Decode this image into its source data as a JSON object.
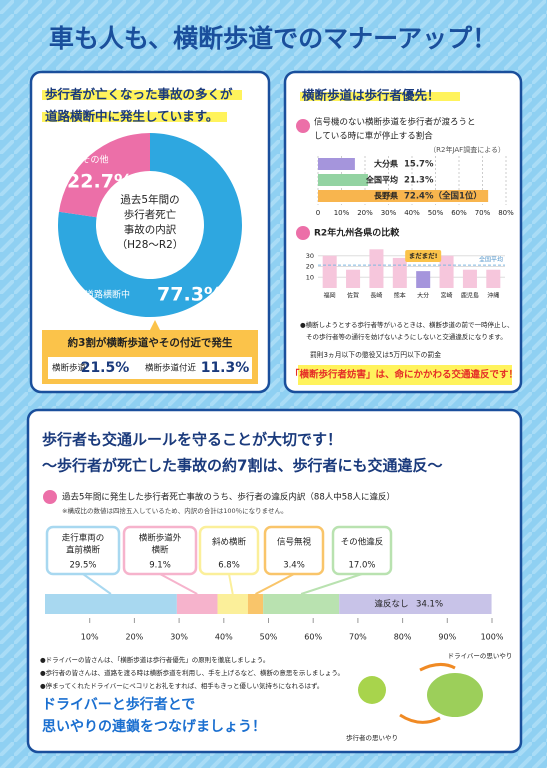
{
  "title": "車も人も、横断歩道でのマナーアップ！",
  "panel1": {
    "heading": [
      "歩行者が亡くなった事故の多くが",
      "道路横断中に発生しています。"
    ],
    "callout": "約3割が横断歩道やその付近で発生",
    "sub": [
      {
        "label": "横断歩道",
        "value": "21.5%"
      },
      {
        "label": "横断歩道付近",
        "value": "11.3%"
      }
    ]
  },
  "panel2": {
    "heading": "横断歩道は歩行者優先！",
    "question": [
      "信号機のない横断歩道を歩行者が渡ろうと",
      "している時に車が停止する割合"
    ],
    "source": "（R2年JAF調査による）",
    "notes": [
      "●横断しようとする歩行者等がいるときは、横断歩道の前で一時停止し、",
      "その歩行者等の通行を妨げないようにしないと交通違反になります。"
    ],
    "penalty": "罰則3ヵ月以下の懲役又は5万円以下の罰金",
    "warning": "「横断歩行者妨害」は、命にかかわる交通違反です！"
  },
  "panel3": {
    "heading": [
      "歩行者も交通ルールを守ることが大切です！",
      "〜歩行者が死亡した事故の約7割は、歩行者にも交通違反〜"
    ],
    "subtitle": "過去5年間に発生した歩行者死亡事故のうち、歩行者の違反内訳（88人中58人に違反）",
    "note": "※構成比の数値は四捨五入しているため、内訳の合計は100％になりません。",
    "bullets": [
      "●ドライバーの皆さんは、「横断歩道は歩行者優先」の原則を徹底しましょう。",
      "●歩行者の皆さんは、道路を渡る時は横断歩道を利用し、手を上げるなど、横断の意思を示しましょう。",
      "●停まってくれたドライバーにペコリとお礼をすれば、相手もきっと優しい気持ちになれるはず。"
    ],
    "slogan": [
      "ドライバーと歩行者とで",
      "思いやりの連鎖をつなげましょう！"
    ],
    "illustration": [
      "ドライバーの思いやり",
      "歩行者の思いやり"
    ]
  },
  "chart_data": [
    {
      "type": "pie",
      "center_label": [
        "過去5年間の",
        "歩行者死亡",
        "事故の内訳",
        "（H28〜R2）"
      ],
      "categories": [
        "道路横断中",
        "その他"
      ],
      "values": [
        77.3,
        22.7
      ],
      "value_labels": [
        "77.3%",
        "22.7%"
      ],
      "colors": [
        "#2ea7e0",
        "#ec6fa8"
      ]
    },
    {
      "type": "hbar",
      "categories": [
        "大分県",
        "全国平均",
        "長野県"
      ],
      "values": [
        15.7,
        21.3,
        72.4
      ],
      "value_labels": [
        "15.7%",
        "21.3%",
        "72.4%（全国1位）"
      ],
      "colors": [
        "#a595dc",
        "#93d3a2",
        "#f8b54e"
      ],
      "xlim": [
        0,
        80
      ],
      "xticks": [
        0,
        {
          "value": 10,
          "label": "10%"
        },
        {
          "value": 20,
          "label": "20%"
        },
        {
          "value": 30,
          "label": "30%"
        },
        {
          "value": 40,
          "label": "40%"
        },
        {
          "value": 50,
          "label": "50%"
        },
        {
          "value": 60,
          "label": "60%"
        },
        {
          "value": 70,
          "label": "70%"
        },
        {
          "value": 80,
          "label": "80%"
        }
      ],
      "grid": true
    },
    {
      "type": "bar",
      "title": "R2年九州各県の比較",
      "categories": [
        "福岡",
        "佐賀",
        "長崎",
        "熊本",
        "大分",
        "宮崎",
        "鹿児島",
        "沖縄"
      ],
      "values": [
        30,
        17,
        36,
        28,
        15.7,
        30,
        17,
        17
      ],
      "colors": [
        "#f6c6dc",
        "#f6c6dc",
        "#f6c6dc",
        "#f6c6dc",
        "#a595dc",
        "#f6c6dc",
        "#f6c6dc",
        "#f6c6dc"
      ],
      "ylim": [
        0,
        40
      ],
      "yticks": [
        10,
        20,
        30
      ],
      "grid": true,
      "annotation": "まだまだ!",
      "reference": {
        "value": 21.3,
        "label": "全国平均"
      }
    },
    {
      "type": "stacked",
      "categories": [
        [
          "走行車両の",
          "直前横断"
        ],
        [
          "横断歩道外",
          "横断"
        ],
        [
          "斜め横断"
        ],
        [
          "信号無視"
        ],
        [
          "その他違反"
        ],
        [
          "違反なし"
        ]
      ],
      "values": [
        29.5,
        9.1,
        6.8,
        3.4,
        17.0,
        34.1
      ],
      "value_labels": [
        "29.5%",
        "9.1%",
        "6.8%",
        "3.4%",
        "17.0%",
        "34.1%"
      ],
      "colors": [
        "#a8d8f0",
        "#f6b3cc",
        "#fbef9a",
        "#f9c56a",
        "#b9e2b0",
        "#c8c3e8"
      ],
      "xlim": [
        0,
        100
      ],
      "xticks": [
        {
          "value": 10,
          "label": "10%"
        },
        {
          "value": 20,
          "label": "20%"
        },
        {
          "value": 30,
          "label": "30%"
        },
        {
          "value": 40,
          "label": "40%"
        },
        {
          "value": 50,
          "label": "50%"
        },
        {
          "value": 60,
          "label": "60%"
        },
        {
          "value": 70,
          "label": "70%"
        },
        {
          "value": 80,
          "label": "80%"
        },
        {
          "value": 90,
          "label": "90%"
        },
        {
          "value": 100,
          "label": "100%"
        }
      ]
    }
  ]
}
